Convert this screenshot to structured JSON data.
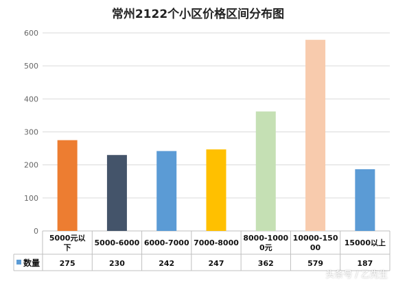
{
  "chart_data": {
    "type": "bar",
    "title": "常州2122个小区价格区间分布图",
    "categories": [
      [
        "5000元以",
        "下"
      ],
      [
        "5000-6000"
      ],
      [
        "6000-7000"
      ],
      [
        "7000-8000"
      ],
      [
        "8000-1000",
        "0元"
      ],
      [
        "10000-150",
        "00"
      ],
      [
        "15000以上"
      ]
    ],
    "series": [
      {
        "name": "数量",
        "values": [
          275,
          230,
          242,
          247,
          362,
          579,
          187
        ]
      }
    ],
    "bar_colors": [
      "#ED7D31",
      "#44546A",
      "#5B9BD5",
      "#FFC000",
      "#C5E0B4",
      "#F8CBAD",
      "#5B9BD5"
    ],
    "legend_color": "#5B9BD5",
    "ylim": [
      0,
      600
    ],
    "yticks": [
      0,
      100,
      200,
      300,
      400,
      500,
      600
    ],
    "grid": true,
    "legend": "data-table-left"
  },
  "watermark": "头条号 / 乙先生"
}
